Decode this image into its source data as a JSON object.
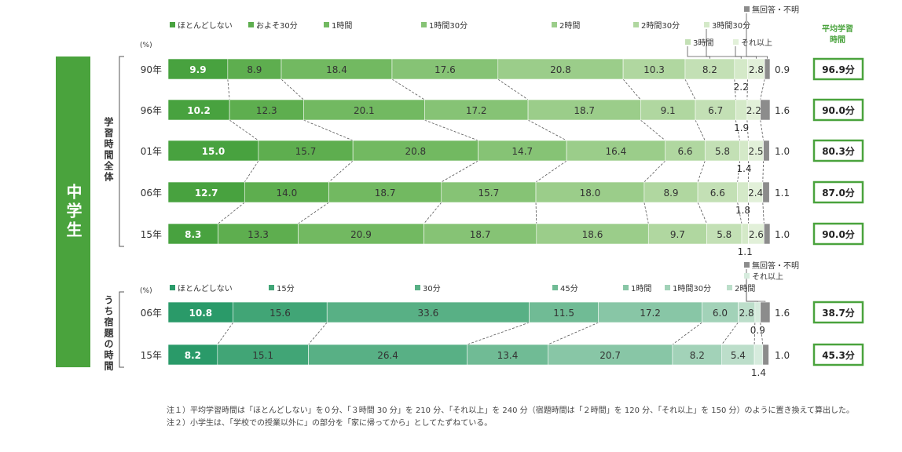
{
  "side_label": "中学生",
  "unit_label": "(%)",
  "avg_header_line1": "平均学習",
  "avg_header_line2": "時間",
  "notes": [
    "注１）平均学習時間は「ほとんどしない」を０分、「３時間 30 分」を 210 分、「それ以上」を 240 分（宿題時間は「２時間」を 120 分、「それ以上」を 150 分）のように置き換えて算出した。",
    "注２）小学生は、「学校での授業以外に」の部分を「家に帰ってから」としてたずねている。"
  ],
  "colors": {
    "side_band": "#4aa33d",
    "avg_border": "#4aa33d",
    "dash": "#555555",
    "bracket": "#555555"
  },
  "chart_data": [
    {
      "type": "bar",
      "orientation": "horizontal",
      "stacked": "percent",
      "group_label": "学習時間全体",
      "categories": [
        "90年",
        "96年",
        "01年",
        "06年",
        "15年"
      ],
      "series": [
        {
          "name": "ほとんどしない",
          "color": "#48a23f",
          "values": [
            9.9,
            10.2,
            15.0,
            12.7,
            8.3
          ]
        },
        {
          "name": "およそ30分",
          "color": "#5eae4f",
          "values": [
            8.9,
            12.3,
            15.7,
            14.0,
            13.3
          ]
        },
        {
          "name": "1時間",
          "color": "#72b961",
          "values": [
            18.4,
            20.1,
            20.8,
            18.7,
            20.9
          ]
        },
        {
          "name": "1時間30分",
          "color": "#86c375",
          "values": [
            17.6,
            17.2,
            14.7,
            15.7,
            18.7
          ]
        },
        {
          "name": "2時間",
          "color": "#9bcd8a",
          "values": [
            20.8,
            18.7,
            16.4,
            18.0,
            18.6
          ]
        },
        {
          "name": "2時間30分",
          "color": "#b0d7a0",
          "values": [
            10.3,
            9.1,
            6.6,
            8.9,
            9.7
          ]
        },
        {
          "name": "3時間",
          "color": "#c3e0b5",
          "values": [
            8.2,
            6.7,
            5.8,
            6.6,
            5.8
          ]
        },
        {
          "name": "3時間30分",
          "color": "#d4e9c8",
          "values": [
            2.2,
            1.9,
            1.4,
            1.8,
            1.1
          ]
        },
        {
          "name": "それ以上",
          "color": "#e2f0d9",
          "values": [
            2.8,
            2.2,
            2.5,
            2.4,
            2.6
          ]
        },
        {
          "name": "無回答・不明",
          "color": "#8c8c8c",
          "values": [
            0.9,
            1.6,
            1.0,
            1.1,
            1.0
          ]
        }
      ],
      "average_minutes": [
        "96.9分",
        "90.0分",
        "80.3分",
        "87.0分",
        "90.0分"
      ],
      "xlim": [
        0,
        100
      ]
    },
    {
      "type": "bar",
      "orientation": "horizontal",
      "stacked": "percent",
      "group_label": "うち宿題の時間",
      "categories": [
        "06年",
        "15年"
      ],
      "series": [
        {
          "name": "ほとんどしない",
          "color": "#2a9a69",
          "values": [
            10.8,
            8.2
          ]
        },
        {
          "name": "15分",
          "color": "#41a576",
          "values": [
            15.6,
            15.1
          ]
        },
        {
          "name": "30分",
          "color": "#58b085",
          "values": [
            33.6,
            26.4
          ]
        },
        {
          "name": "45分",
          "color": "#70bb95",
          "values": [
            11.5,
            13.4
          ]
        },
        {
          "name": "1時間",
          "color": "#88c6a6",
          "values": [
            17.2,
            20.7
          ]
        },
        {
          "name": "1時間30分",
          "color": "#a2d2b8",
          "values": [
            6.0,
            8.2
          ]
        },
        {
          "name": "2時間",
          "color": "#bcdeca",
          "values": [
            2.8,
            5.4
          ]
        },
        {
          "name": "それ以上",
          "color": "#d6ebdd",
          "values": [
            0.9,
            1.4
          ]
        },
        {
          "name": "無回答・不明",
          "color": "#8c8c8c",
          "values": [
            1.6,
            1.0
          ]
        }
      ],
      "average_minutes": [
        "38.7分",
        "45.3分"
      ],
      "xlim": [
        0,
        100
      ]
    }
  ]
}
